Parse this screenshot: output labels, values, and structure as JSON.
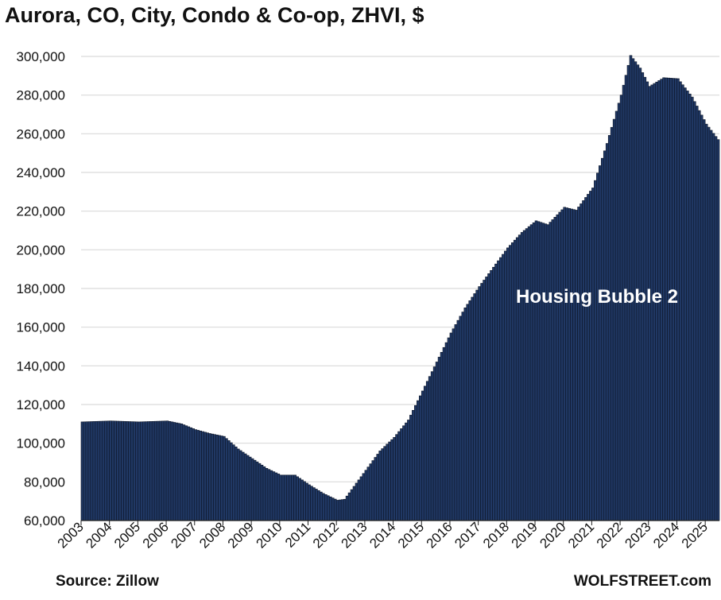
{
  "title": "Aurora, CO, City, Condo & Co-op, ZHVI, $",
  "source": "Source: Zillow",
  "brand": "WOLFSTREET.com",
  "colors": {
    "bar_fill": "#203864",
    "bar_edge": "#0d1628",
    "grid": "#d9d9d9"
  },
  "chart_data": {
    "type": "bar",
    "title": "Aurora, CO, City, Condo & Co-op, ZHVI, $",
    "xlabel": "",
    "ylabel": "",
    "ylim": [
      60000,
      300000
    ],
    "y_ticks": [
      "60,000",
      "80,000",
      "100,000",
      "120,000",
      "140,000",
      "160,000",
      "180,000",
      "200,000",
      "220,000",
      "240,000",
      "260,000",
      "280,000",
      "300,000"
    ],
    "x_ticks": [
      "2003",
      "2004",
      "2005",
      "2006",
      "2007",
      "2008",
      "2009",
      "2010",
      "2011",
      "2012",
      "2013",
      "2014",
      "2015",
      "2016",
      "2017",
      "2018",
      "2019",
      "2020",
      "2021",
      "2022",
      "2023",
      "2024",
      "2025"
    ],
    "grid": true,
    "legend": "none",
    "start": "2003-01",
    "frequency": "monthly",
    "annotation": "Housing Bubble 2",
    "anchors": [
      [
        "2003-01",
        111000
      ],
      [
        "2004-01",
        111500
      ],
      [
        "2005-01",
        111000
      ],
      [
        "2006-01",
        111500
      ],
      [
        "2006-07",
        110000
      ],
      [
        "2007-01",
        107000
      ],
      [
        "2007-07",
        105000
      ],
      [
        "2008-01",
        103500
      ],
      [
        "2008-07",
        97000
      ],
      [
        "2009-01",
        92000
      ],
      [
        "2009-07",
        87000
      ],
      [
        "2010-01",
        83500
      ],
      [
        "2010-07",
        83500
      ],
      [
        "2011-01",
        78500
      ],
      [
        "2011-07",
        74000
      ],
      [
        "2012-01",
        70500
      ],
      [
        "2012-04",
        71000
      ],
      [
        "2012-07",
        76000
      ],
      [
        "2013-01",
        86000
      ],
      [
        "2013-07",
        96000
      ],
      [
        "2014-01",
        103000
      ],
      [
        "2014-07",
        112000
      ],
      [
        "2015-01",
        127000
      ],
      [
        "2015-07",
        142000
      ],
      [
        "2016-01",
        157000
      ],
      [
        "2016-07",
        170000
      ],
      [
        "2017-01",
        181000
      ],
      [
        "2017-07",
        191000
      ],
      [
        "2018-01",
        201000
      ],
      [
        "2018-07",
        209000
      ],
      [
        "2019-01",
        215000
      ],
      [
        "2019-06",
        213000
      ],
      [
        "2020-01",
        222000
      ],
      [
        "2020-06",
        220500
      ],
      [
        "2021-01",
        232000
      ],
      [
        "2021-07",
        255000
      ],
      [
        "2022-01",
        280000
      ],
      [
        "2022-05",
        300500
      ],
      [
        "2022-09",
        294000
      ],
      [
        "2023-01",
        284500
      ],
      [
        "2023-07",
        289000
      ],
      [
        "2024-01",
        288500
      ],
      [
        "2024-07",
        279000
      ],
      [
        "2025-01",
        265000
      ],
      [
        "2025-06",
        257000
      ]
    ]
  }
}
